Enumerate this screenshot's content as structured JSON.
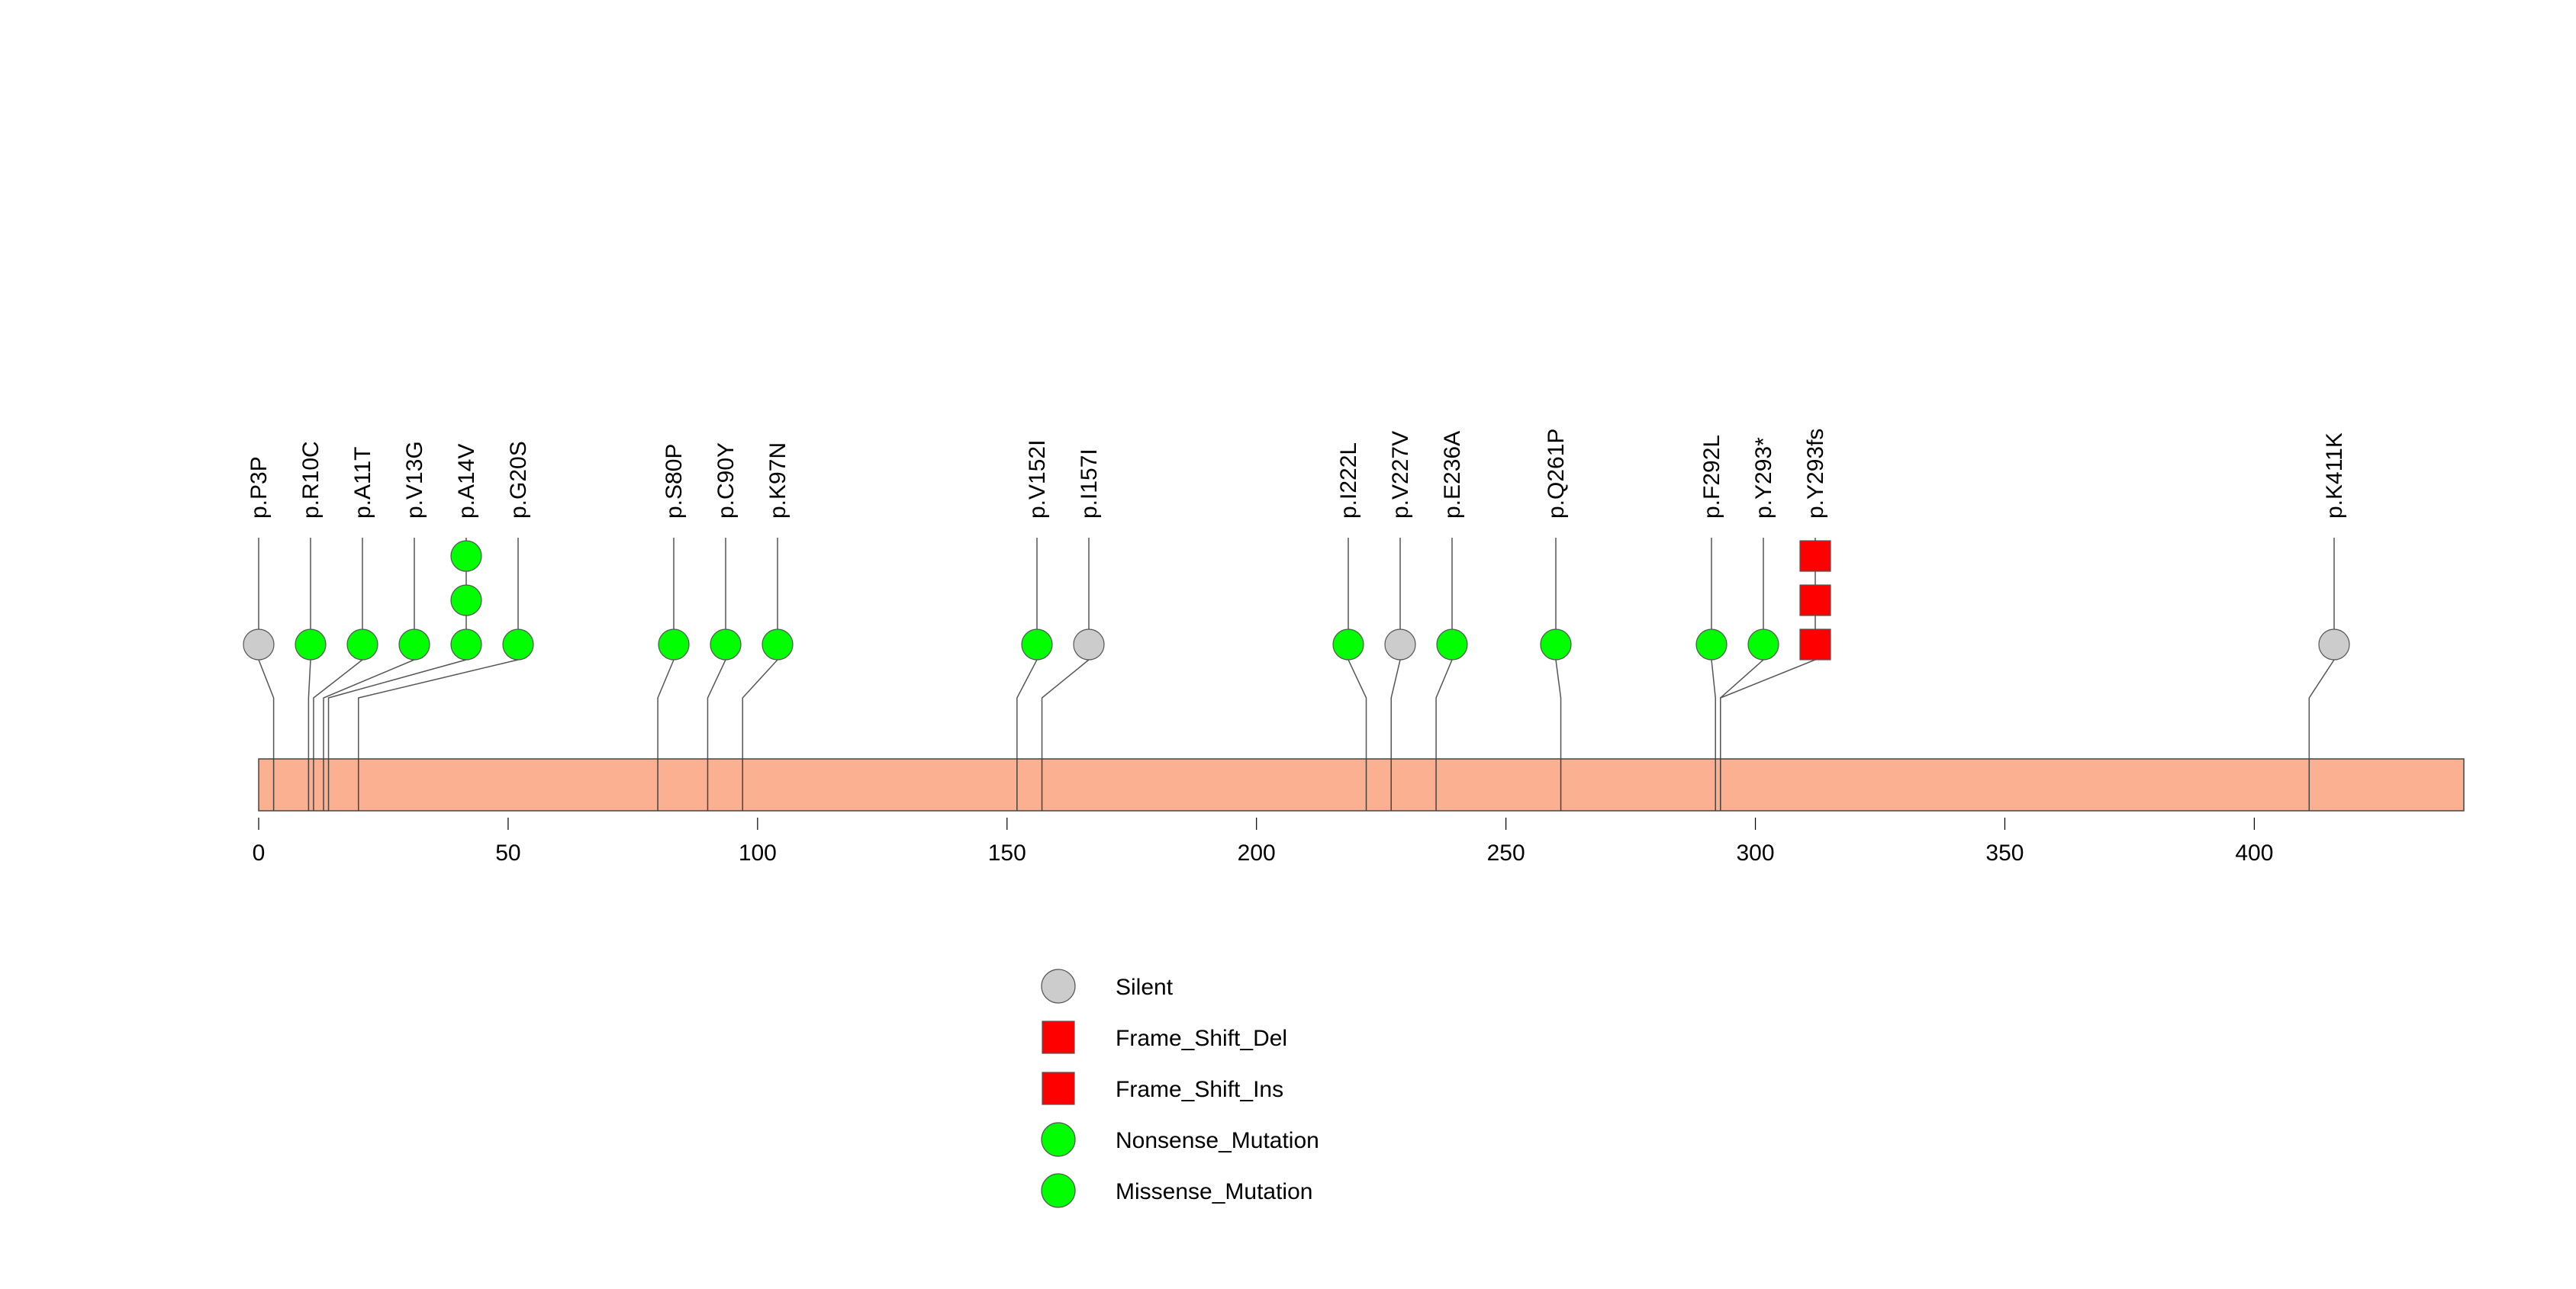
{
  "chart_data": {
    "type": "lollipop",
    "title": "",
    "xlabel": "",
    "ylabel": "",
    "xlim": [
      0,
      442
    ],
    "x_ticks": [
      0,
      50,
      100,
      150,
      200,
      250,
      300,
      350,
      400
    ],
    "colors": {
      "protein_bar": "#FBB092",
      "silent": "#CCCCCC",
      "frame_shift": "#FF0000",
      "missense": "#00FF00"
    },
    "mutations": [
      {
        "label": "p.P3P",
        "position": 3,
        "count": 1,
        "type": "Silent"
      },
      {
        "label": "p.R10C",
        "position": 10,
        "count": 1,
        "type": "Missense_Mutation"
      },
      {
        "label": "p.A11T",
        "position": 11,
        "count": 1,
        "type": "Missense_Mutation"
      },
      {
        "label": "p.V13G",
        "position": 13,
        "count": 1,
        "type": "Missense_Mutation"
      },
      {
        "label": "p.A14V",
        "position": 14,
        "count": 3,
        "type": "Missense_Mutation"
      },
      {
        "label": "p.G20S",
        "position": 20,
        "count": 1,
        "type": "Missense_Mutation"
      },
      {
        "label": "p.S80P",
        "position": 80,
        "count": 1,
        "type": "Missense_Mutation"
      },
      {
        "label": "p.C90Y",
        "position": 90,
        "count": 1,
        "type": "Missense_Mutation"
      },
      {
        "label": "p.K97N",
        "position": 97,
        "count": 1,
        "type": "Missense_Mutation"
      },
      {
        "label": "p.V152I",
        "position": 152,
        "count": 1,
        "type": "Missense_Mutation"
      },
      {
        "label": "p.I157I",
        "position": 157,
        "count": 1,
        "type": "Silent"
      },
      {
        "label": "p.I222L",
        "position": 222,
        "count": 1,
        "type": "Missense_Mutation"
      },
      {
        "label": "p.V227V",
        "position": 227,
        "count": 1,
        "type": "Silent"
      },
      {
        "label": "p.E236A",
        "position": 236,
        "count": 1,
        "type": "Missense_Mutation"
      },
      {
        "label": "p.Q261P",
        "position": 261,
        "count": 1,
        "type": "Missense_Mutation"
      },
      {
        "label": "p.F292L",
        "position": 292,
        "count": 1,
        "type": "Missense_Mutation"
      },
      {
        "label": "p.Y293*",
        "position": 293,
        "count": 1,
        "type": "Nonsense_Mutation"
      },
      {
        "label": "p.Y293fs",
        "position": 293,
        "count": 3,
        "type": "Frame_Shift_Del"
      },
      {
        "label": "p.K411K",
        "position": 411,
        "count": 1,
        "type": "Silent"
      }
    ],
    "legend": [
      {
        "label": "Silent",
        "shape": "circle",
        "color": "#CCCCCC"
      },
      {
        "label": "Frame_Shift_Del",
        "shape": "square",
        "color": "#FF0000"
      },
      {
        "label": "Frame_Shift_Ins",
        "shape": "square",
        "color": "#FF0000"
      },
      {
        "label": "Nonsense_Mutation",
        "shape": "circle",
        "color": "#00FF00"
      },
      {
        "label": "Missense_Mutation",
        "shape": "circle",
        "color": "#00FF00"
      }
    ]
  }
}
